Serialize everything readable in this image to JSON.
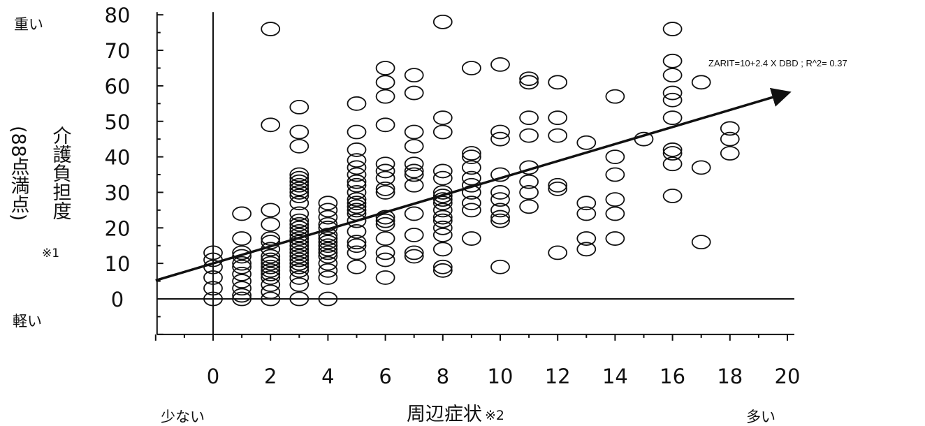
{
  "chart_data": {
    "type": "scatter",
    "title": "",
    "xlabel": "周辺症状",
    "xlabel_note": "※2",
    "ylabel": "介護負担度",
    "ylabel_sub": "(88点満点)",
    "ylabel_note": "※1",
    "y_high_label": "重い",
    "y_low_label": "軽い",
    "x_low_label": "少ない",
    "x_high_label": "多い",
    "xlim": [
      -2,
      20
    ],
    "ylim": [
      -10,
      80
    ],
    "x_ticks": [
      0,
      2,
      4,
      6,
      8,
      10,
      12,
      14,
      16,
      18,
      20
    ],
    "y_ticks": [
      0,
      10,
      20,
      30,
      40,
      50,
      60,
      70,
      80
    ],
    "grid": false,
    "marker": "open-circle",
    "regression": {
      "label": "ZARIT=10+2.4 X DBD ; R^2= 0.37",
      "intercept": 10,
      "slope": 2.4,
      "x_range": [
        -2,
        20
      ]
    },
    "points": [
      [
        0,
        0
      ],
      [
        0,
        3
      ],
      [
        0,
        6
      ],
      [
        0,
        9
      ],
      [
        0,
        11
      ],
      [
        0,
        13
      ],
      [
        1,
        0
      ],
      [
        1,
        1
      ],
      [
        1,
        3
      ],
      [
        1,
        5
      ],
      [
        1,
        7
      ],
      [
        1,
        9
      ],
      [
        1,
        10
      ],
      [
        1,
        12
      ],
      [
        1,
        13
      ],
      [
        1,
        17
      ],
      [
        1,
        24
      ],
      [
        2,
        0
      ],
      [
        2,
        2
      ],
      [
        2,
        4
      ],
      [
        2,
        6
      ],
      [
        2,
        7
      ],
      [
        2,
        8
      ],
      [
        2,
        9
      ],
      [
        2,
        10
      ],
      [
        2,
        11
      ],
      [
        2,
        12
      ],
      [
        2,
        14
      ],
      [
        2,
        16
      ],
      [
        2,
        17
      ],
      [
        2,
        21
      ],
      [
        2,
        25
      ],
      [
        2,
        49
      ],
      [
        2,
        76
      ],
      [
        3,
        0
      ],
      [
        3,
        4
      ],
      [
        3,
        6
      ],
      [
        3,
        8
      ],
      [
        3,
        9
      ],
      [
        3,
        10
      ],
      [
        3,
        11
      ],
      [
        3,
        12
      ],
      [
        3,
        13
      ],
      [
        3,
        14
      ],
      [
        3,
        15
      ],
      [
        3,
        16
      ],
      [
        3,
        17
      ],
      [
        3,
        18
      ],
      [
        3,
        19
      ],
      [
        3,
        20
      ],
      [
        3,
        21
      ],
      [
        3,
        22
      ],
      [
        3,
        24
      ],
      [
        3,
        27
      ],
      [
        3,
        29
      ],
      [
        3,
        30
      ],
      [
        3,
        31
      ],
      [
        3,
        32
      ],
      [
        3,
        33
      ],
      [
        3,
        34
      ],
      [
        3,
        35
      ],
      [
        3,
        43
      ],
      [
        3,
        47
      ],
      [
        3,
        54
      ],
      [
        4,
        0
      ],
      [
        4,
        6
      ],
      [
        4,
        8
      ],
      [
        4,
        10
      ],
      [
        4,
        12
      ],
      [
        4,
        13
      ],
      [
        4,
        14
      ],
      [
        4,
        15
      ],
      [
        4,
        16
      ],
      [
        4,
        17
      ],
      [
        4,
        18
      ],
      [
        4,
        20
      ],
      [
        4,
        21
      ],
      [
        4,
        23
      ],
      [
        4,
        25
      ],
      [
        4,
        27
      ],
      [
        5,
        9
      ],
      [
        5,
        13
      ],
      [
        5,
        15
      ],
      [
        5,
        16
      ],
      [
        5,
        19
      ],
      [
        5,
        22
      ],
      [
        5,
        24
      ],
      [
        5,
        25
      ],
      [
        5,
        26
      ],
      [
        5,
        27
      ],
      [
        5,
        28
      ],
      [
        5,
        30
      ],
      [
        5,
        32
      ],
      [
        5,
        33
      ],
      [
        5,
        35
      ],
      [
        5,
        37
      ],
      [
        5,
        39
      ],
      [
        5,
        42
      ],
      [
        5,
        47
      ],
      [
        5,
        55
      ],
      [
        6,
        6
      ],
      [
        6,
        11
      ],
      [
        6,
        13
      ],
      [
        6,
        17
      ],
      [
        6,
        21
      ],
      [
        6,
        22
      ],
      [
        6,
        23
      ],
      [
        6,
        30
      ],
      [
        6,
        31
      ],
      [
        6,
        34
      ],
      [
        6,
        36
      ],
      [
        6,
        38
      ],
      [
        6,
        49
      ],
      [
        6,
        57
      ],
      [
        6,
        61
      ],
      [
        6,
        65
      ],
      [
        7,
        12
      ],
      [
        7,
        13
      ],
      [
        7,
        18
      ],
      [
        7,
        24
      ],
      [
        7,
        32
      ],
      [
        7,
        35
      ],
      [
        7,
        36
      ],
      [
        7,
        38
      ],
      [
        7,
        43
      ],
      [
        7,
        47
      ],
      [
        7,
        58
      ],
      [
        7,
        63
      ],
      [
        8,
        8
      ],
      [
        8,
        9
      ],
      [
        8,
        14
      ],
      [
        8,
        18
      ],
      [
        8,
        20
      ],
      [
        8,
        22
      ],
      [
        8,
        23
      ],
      [
        8,
        25
      ],
      [
        8,
        27
      ],
      [
        8,
        28
      ],
      [
        8,
        29
      ],
      [
        8,
        30
      ],
      [
        8,
        34
      ],
      [
        8,
        36
      ],
      [
        8,
        47
      ],
      [
        8,
        51
      ],
      [
        8,
        78
      ],
      [
        9,
        17
      ],
      [
        9,
        25
      ],
      [
        9,
        27
      ],
      [
        9,
        30
      ],
      [
        9,
        32
      ],
      [
        9,
        34
      ],
      [
        9,
        37
      ],
      [
        9,
        40
      ],
      [
        9,
        41
      ],
      [
        9,
        65
      ],
      [
        10,
        9
      ],
      [
        10,
        22
      ],
      [
        10,
        23
      ],
      [
        10,
        25
      ],
      [
        10,
        28
      ],
      [
        10,
        30
      ],
      [
        10,
        35
      ],
      [
        10,
        45
      ],
      [
        10,
        47
      ],
      [
        10,
        66
      ],
      [
        11,
        26
      ],
      [
        11,
        30
      ],
      [
        11,
        33
      ],
      [
        11,
        37
      ],
      [
        11,
        46
      ],
      [
        11,
        51
      ],
      [
        11,
        61
      ],
      [
        11,
        62
      ],
      [
        12,
        13
      ],
      [
        12,
        31
      ],
      [
        12,
        32
      ],
      [
        12,
        46
      ],
      [
        12,
        51
      ],
      [
        12,
        61
      ],
      [
        13,
        14
      ],
      [
        13,
        17
      ],
      [
        13,
        24
      ],
      [
        13,
        27
      ],
      [
        13,
        44
      ],
      [
        14,
        17
      ],
      [
        14,
        24
      ],
      [
        14,
        28
      ],
      [
        14,
        35
      ],
      [
        14,
        40
      ],
      [
        14,
        57
      ],
      [
        15,
        45
      ],
      [
        16,
        29
      ],
      [
        16,
        38
      ],
      [
        16,
        41
      ],
      [
        16,
        42
      ],
      [
        16,
        51
      ],
      [
        16,
        56
      ],
      [
        16,
        58
      ],
      [
        16,
        63
      ],
      [
        16,
        67
      ],
      [
        16,
        76
      ],
      [
        17,
        16
      ],
      [
        17,
        37
      ],
      [
        17,
        61
      ],
      [
        18,
        41
      ],
      [
        18,
        45
      ],
      [
        18,
        48
      ]
    ]
  }
}
